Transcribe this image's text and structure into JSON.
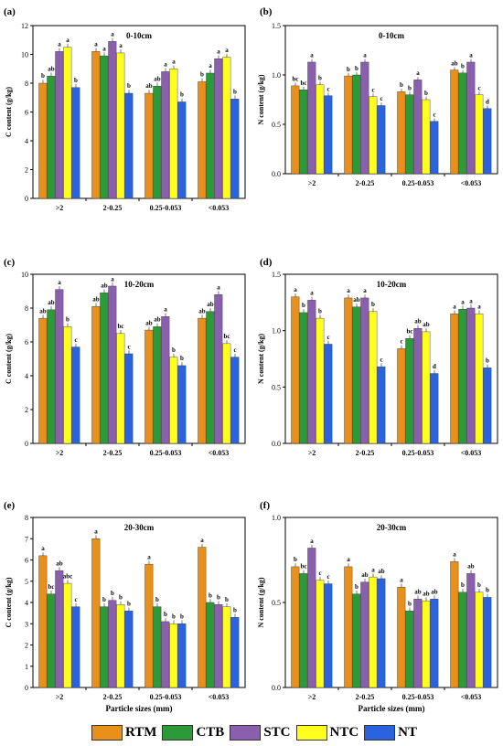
{
  "legend": {
    "items": [
      {
        "label": "RTM",
        "color": "#e8901a"
      },
      {
        "label": "CTB",
        "color": "#2c9a38"
      },
      {
        "label": "STC",
        "color": "#8a5fae"
      },
      {
        "label": "NTC",
        "color": "#ffff1e"
      },
      {
        "label": "NT",
        "color": "#2a62e0"
      }
    ]
  },
  "chart_data": [
    {
      "type": "bar",
      "panel_label": "(a)",
      "title": "0-10cm",
      "xlabel": "",
      "ylabel": "C content (g/kg)",
      "ylim": [
        0,
        12
      ],
      "yticks": [
        0,
        2,
        4,
        6,
        8,
        10,
        12
      ],
      "categories": [
        ">2",
        "2-0.25",
        "0.25-0.053",
        "<0.053"
      ],
      "series": [
        {
          "name": "RTM",
          "values": [
            8.0,
            10.2,
            7.3,
            8.1
          ]
        },
        {
          "name": "CTB",
          "values": [
            8.5,
            9.9,
            7.8,
            8.7
          ]
        },
        {
          "name": "STC",
          "values": [
            10.2,
            10.9,
            8.8,
            9.7
          ]
        },
        {
          "name": "NTC",
          "values": [
            10.5,
            10.1,
            9.0,
            9.8
          ]
        },
        {
          "name": "NT",
          "values": [
            7.7,
            7.3,
            6.7,
            6.9
          ]
        }
      ],
      "labels": [
        [
          "b",
          "ab",
          "a",
          "a",
          "b"
        ],
        [
          "a",
          "a",
          "a",
          "a",
          "b"
        ],
        [
          "ab",
          "ab",
          "a",
          "a",
          "b"
        ],
        [
          "b",
          "a",
          "a",
          "a",
          "b"
        ]
      ]
    },
    {
      "type": "bar",
      "panel_label": "(b)",
      "title": "0-10cm",
      "xlabel": "",
      "ylabel": "N content (g/kg)",
      "ylim": [
        0,
        1.5
      ],
      "yticks": [
        "0.0",
        "0.5",
        "1.0",
        "1.5"
      ],
      "categories": [
        ">2",
        "2-0.25",
        "0.25-0.053",
        "<0.053"
      ],
      "series": [
        {
          "name": "RTM",
          "values": [
            0.89,
            0.99,
            0.83,
            1.05
          ]
        },
        {
          "name": "CTB",
          "values": [
            0.85,
            1.0,
            0.8,
            1.02
          ]
        },
        {
          "name": "STC",
          "values": [
            1.13,
            1.13,
            0.95,
            1.13
          ]
        },
        {
          "name": "NTC",
          "values": [
            0.9,
            0.78,
            0.75,
            0.8
          ]
        },
        {
          "name": "NT",
          "values": [
            0.79,
            0.69,
            0.53,
            0.66
          ]
        }
      ],
      "labels": [
        [
          "bc",
          "bc",
          "a",
          "b",
          "c"
        ],
        [
          "b",
          "b",
          "a",
          "c",
          "c"
        ],
        [
          "b",
          "b",
          "a",
          "b",
          "c"
        ],
        [
          "ab",
          "b",
          "a",
          "c",
          "d"
        ]
      ]
    },
    {
      "type": "bar",
      "panel_label": "(c)",
      "title": "10-20cm",
      "xlabel": "",
      "ylabel": "C content (g/kg)",
      "ylim": [
        0,
        10
      ],
      "yticks": [
        0,
        2,
        4,
        6,
        8,
        10
      ],
      "categories": [
        ">2",
        "2-0.25",
        "0.25-0.053",
        "<0.053"
      ],
      "series": [
        {
          "name": "RTM",
          "values": [
            7.4,
            8.1,
            6.7,
            7.4
          ]
        },
        {
          "name": "CTB",
          "values": [
            7.9,
            8.9,
            6.9,
            7.8
          ]
        },
        {
          "name": "STC",
          "values": [
            9.1,
            9.3,
            7.5,
            8.8
          ]
        },
        {
          "name": "NTC",
          "values": [
            6.9,
            6.5,
            5.1,
            5.9
          ]
        },
        {
          "name": "NT",
          "values": [
            5.7,
            5.3,
            4.6,
            5.1
          ]
        }
      ],
      "labels": [
        [
          "ab",
          "ab",
          "a",
          "b",
          "c"
        ],
        [
          "ab",
          "ab",
          "a",
          "bc",
          "c"
        ],
        [
          "ab",
          "ab",
          "a",
          "b",
          "b"
        ],
        [
          "ab",
          "ab",
          "a",
          "bc",
          "c"
        ]
      ]
    },
    {
      "type": "bar",
      "panel_label": "(d)",
      "title": "10-20cm",
      "xlabel": "",
      "ylabel": "N content (g/kg)",
      "ylim": [
        0,
        1.5
      ],
      "yticks": [
        "0.0",
        "0.5",
        "1.0",
        "1.5"
      ],
      "categories": [
        ">2",
        "2-0.25",
        "0.25-0.053",
        "<0.053"
      ],
      "series": [
        {
          "name": "RTM",
          "values": [
            1.3,
            1.29,
            0.84,
            1.15
          ]
        },
        {
          "name": "CTB",
          "values": [
            1.16,
            1.21,
            0.93,
            1.19
          ]
        },
        {
          "name": "STC",
          "values": [
            1.27,
            1.29,
            1.02,
            1.2
          ]
        },
        {
          "name": "NTC",
          "values": [
            1.11,
            1.17,
            0.99,
            1.15
          ]
        },
        {
          "name": "NT",
          "values": [
            0.88,
            0.68,
            0.62,
            0.67
          ]
        }
      ],
      "labels": [
        [
          "a",
          "b",
          "a",
          "b",
          "c"
        ],
        [
          "a",
          "ab",
          "a",
          "b",
          "c"
        ],
        [
          "c",
          "bc",
          "ab",
          "ab",
          "d"
        ],
        [
          "a",
          "a",
          "a",
          "a",
          "b"
        ]
      ]
    },
    {
      "type": "bar",
      "panel_label": "(e)",
      "title": "20-30cm",
      "xlabel": "Particle sizes (mm)",
      "ylabel": "C content (g/kg)",
      "ylim": [
        0,
        8
      ],
      "yticks": [
        0,
        1,
        2,
        3,
        4,
        5,
        6,
        7,
        8
      ],
      "categories": [
        ">2",
        "2-0.25",
        "0.25-0.053",
        "<0.053"
      ],
      "series": [
        {
          "name": "RTM",
          "values": [
            6.2,
            7.0,
            5.8,
            6.6
          ]
        },
        {
          "name": "CTB",
          "values": [
            4.4,
            3.8,
            3.8,
            4.0
          ]
        },
        {
          "name": "STC",
          "values": [
            5.5,
            4.1,
            3.1,
            3.9
          ]
        },
        {
          "name": "NTC",
          "values": [
            4.9,
            3.9,
            3.0,
            3.8
          ]
        },
        {
          "name": "NT",
          "values": [
            3.8,
            3.6,
            3.0,
            3.3
          ]
        }
      ],
      "labels": [
        [
          "a",
          "bc",
          "ab",
          "abc",
          "c"
        ],
        [
          "a",
          "b",
          "b",
          "b",
          "b"
        ],
        [
          "a",
          "b",
          "b",
          "b",
          "b"
        ],
        [
          "a",
          "b",
          "b",
          "b",
          "b"
        ]
      ]
    },
    {
      "type": "bar",
      "panel_label": "(f)",
      "title": "20-30cm",
      "xlabel": "Particle sizes (mm)",
      "ylabel": "N content (g/kg)",
      "ylim": [
        0,
        1.0
      ],
      "yticks": [
        "0.0",
        "0.5",
        "1.0"
      ],
      "categories": [
        ">2",
        "2-0.25",
        "0.25-0.053",
        "<0.053"
      ],
      "series": [
        {
          "name": "RTM",
          "values": [
            0.71,
            0.71,
            0.59,
            0.74
          ]
        },
        {
          "name": "CTB",
          "values": [
            0.67,
            0.55,
            0.45,
            0.56
          ]
        },
        {
          "name": "STC",
          "values": [
            0.82,
            0.62,
            0.52,
            0.67
          ]
        },
        {
          "name": "NTC",
          "values": [
            0.63,
            0.65,
            0.51,
            0.56
          ]
        },
        {
          "name": "NT",
          "values": [
            0.61,
            0.64,
            0.52,
            0.53
          ]
        }
      ],
      "labels": [
        [
          "b",
          "bc",
          "a",
          "c",
          "c"
        ],
        [
          "a",
          "b",
          "ab",
          "a",
          "ab"
        ],
        [
          "a",
          "b",
          "ab",
          "ab",
          "ab"
        ],
        [
          "a",
          "b",
          "ab",
          "b",
          "b"
        ]
      ]
    }
  ]
}
